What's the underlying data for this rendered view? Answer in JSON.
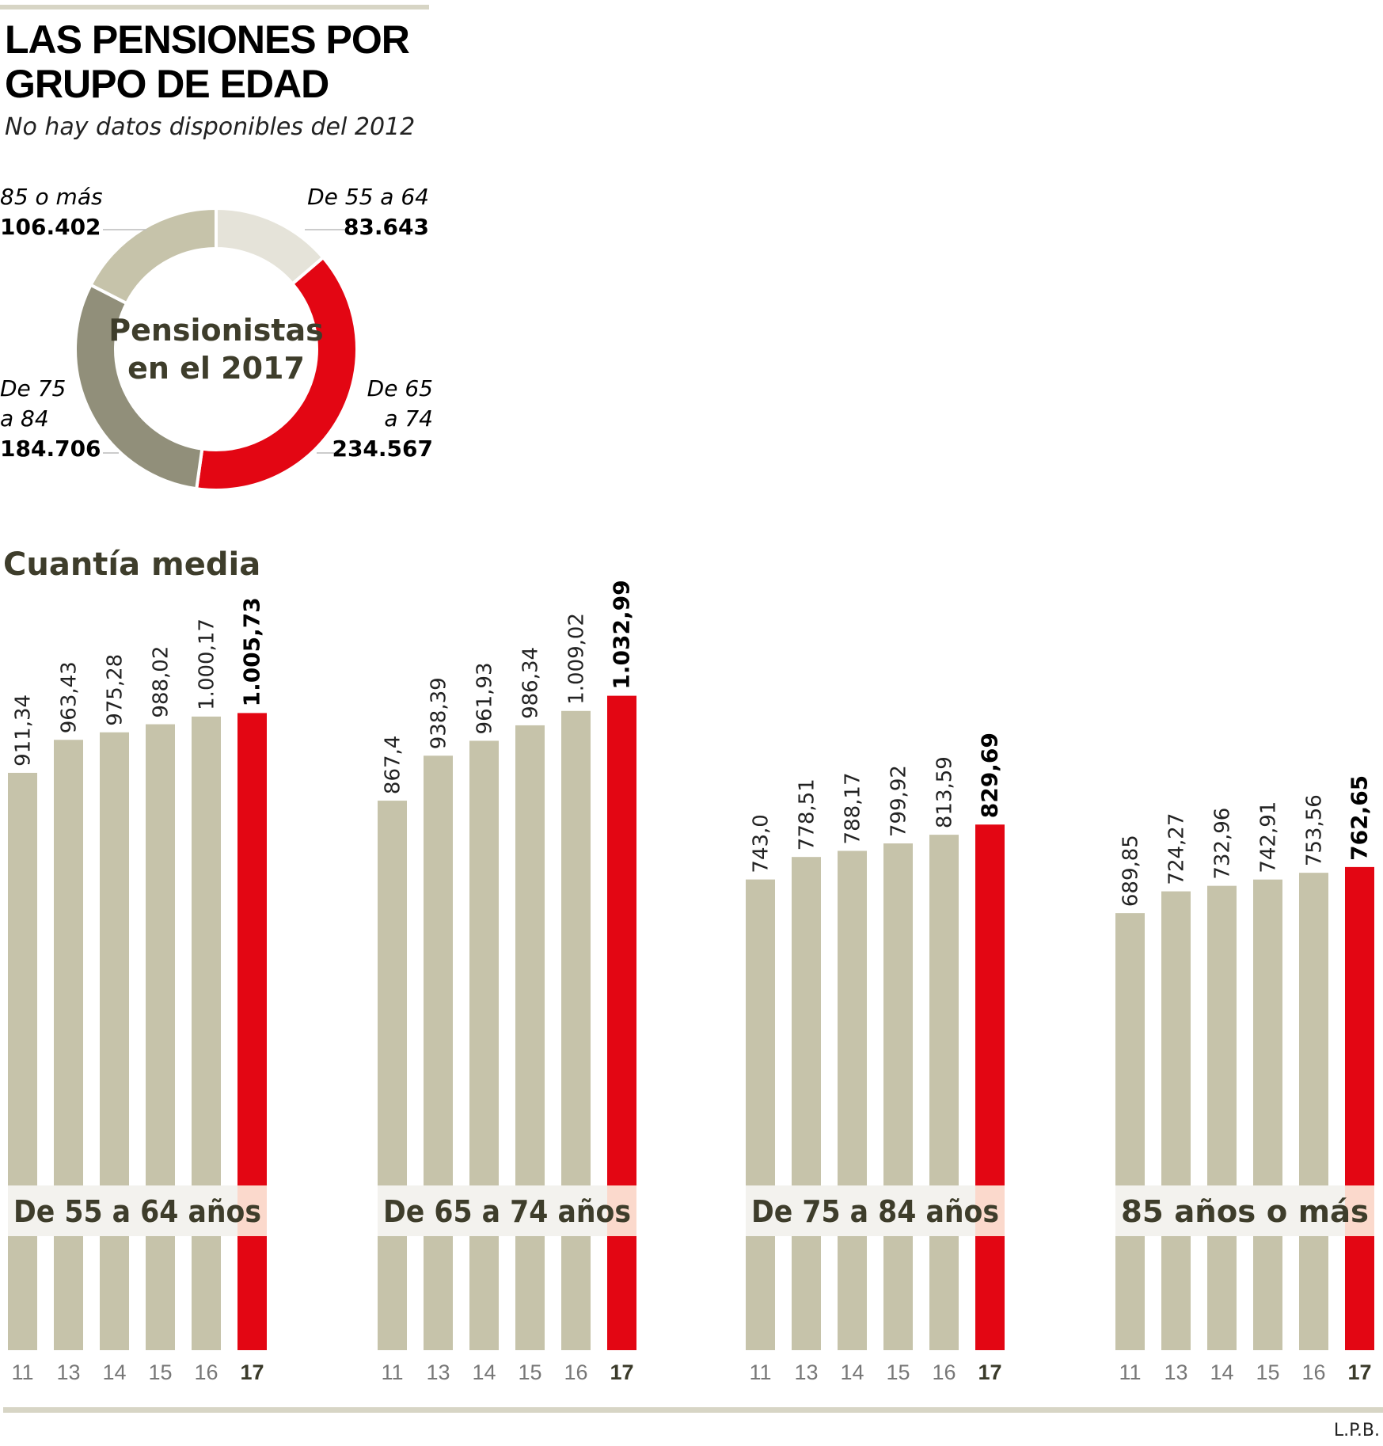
{
  "header": {
    "title_line1": "LAS PENSIONES POR",
    "title_line2": "GRUPO DE EDAD",
    "subtitle": "No hay datos disponibles del 2012"
  },
  "colors": {
    "bar": "#c6c3aa",
    "highlight": "#e30613",
    "band": "#f3f2ee",
    "band_highlight": "#fbd9cc",
    "text_dark": "#3e3d2b"
  },
  "chart_data": [
    {
      "type": "pie",
      "title": "Pensionistas en el 2017",
      "center_line1": "Pensionistas",
      "center_line2": "en el 2017",
      "slices": [
        {
          "name_line1": "De 55 a 64",
          "name_line2": "",
          "label": "83.643",
          "value": 83643,
          "color": "#e5e3d9"
        },
        {
          "name_line1": "De 65",
          "name_line2": "a 74",
          "label": "234.567",
          "value": 234567,
          "color": "#e30613"
        },
        {
          "name_line1": "De 75",
          "name_line2": "a 84",
          "label": "184.706",
          "value": 184706,
          "color": "#918f7a"
        },
        {
          "name_line1": "85 o más",
          "name_line2": "",
          "label": "106.402",
          "value": 106402,
          "color": "#c6c3aa"
        }
      ]
    },
    {
      "type": "bar",
      "title": "Cuantía media",
      "categories": [
        "11",
        "13",
        "14",
        "15",
        "16",
        "17"
      ],
      "series": [
        {
          "name": "De 55 a 64 años",
          "values": [
            911.34,
            963.43,
            975.28,
            988.02,
            1000.17,
            1005.73
          ],
          "labels": [
            "911,34",
            "963,43",
            "975,28",
            "988,02",
            "1.000,17",
            "1.005,73"
          ]
        },
        {
          "name": "De 65 a 74 años",
          "values": [
            867.4,
            938.39,
            961.93,
            986.34,
            1009.02,
            1032.99
          ],
          "labels": [
            "867,4",
            "938,39",
            "961,93",
            "986,34",
            "1.009,02",
            "1.032,99"
          ]
        },
        {
          "name": "De 75 a 84 años",
          "values": [
            743.0,
            778.51,
            788.17,
            799.92,
            813.59,
            829.69
          ],
          "labels": [
            "743,0",
            "778,51",
            "788,17",
            "799,92",
            "813,59",
            "829,69"
          ]
        },
        {
          "name": "85 años o más",
          "values": [
            689.85,
            724.27,
            732.96,
            742.91,
            753.56,
            762.65
          ],
          "labels": [
            "689,85",
            "724,27",
            "732,96",
            "742,91",
            "753,56",
            "762,65"
          ]
        }
      ],
      "highlight_category": "17",
      "ylim": [
        0,
        1100
      ]
    }
  ],
  "footer": {
    "credit": "L.P.B."
  }
}
